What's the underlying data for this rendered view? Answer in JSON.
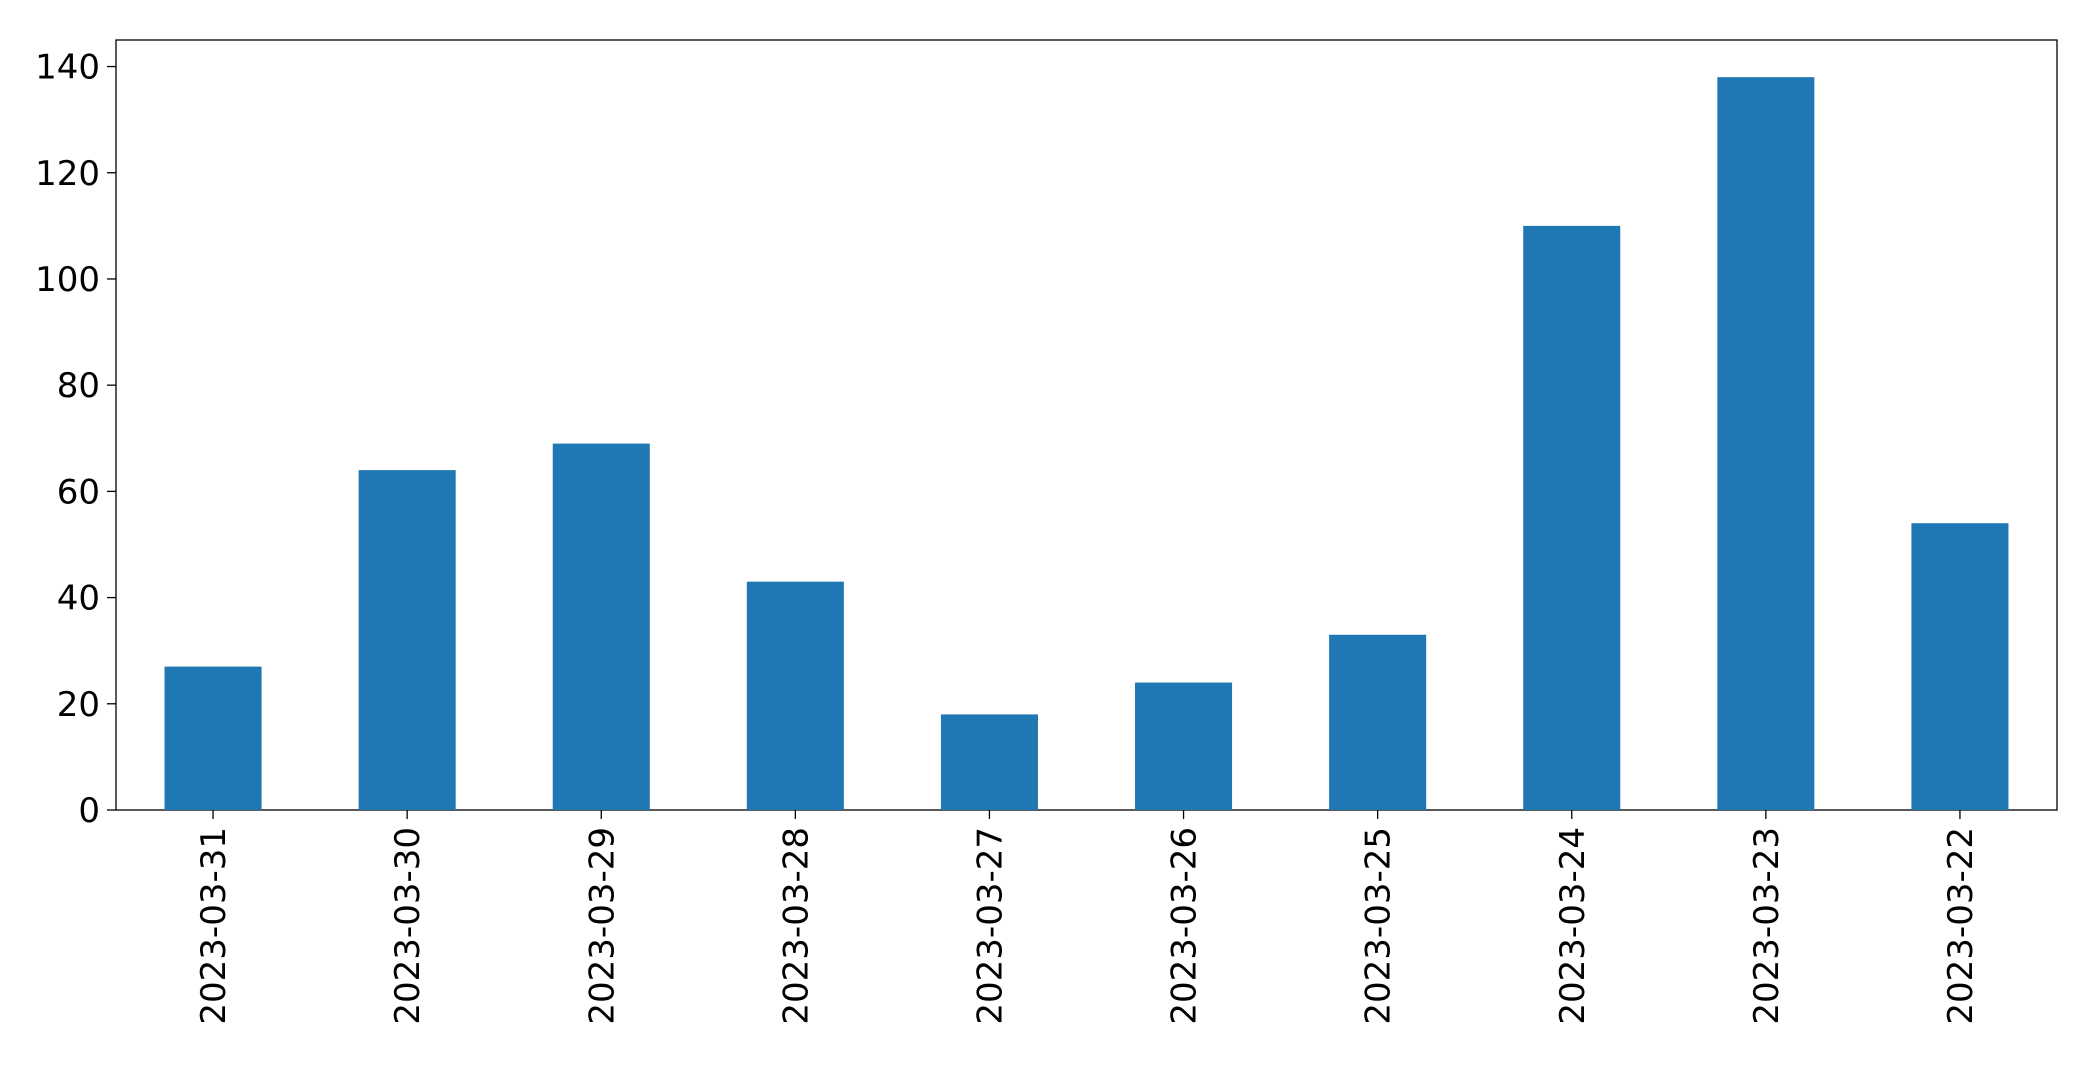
{
  "chart_data": {
    "type": "bar",
    "title": "",
    "xlabel": "",
    "ylabel": "",
    "categories": [
      "2023-03-31",
      "2023-03-30",
      "2023-03-29",
      "2023-03-28",
      "2023-03-27",
      "2023-03-26",
      "2023-03-25",
      "2023-03-24",
      "2023-03-23",
      "2023-03-22"
    ],
    "series": [
      {
        "values": [
          27,
          64,
          69,
          43,
          18,
          24,
          33,
          110,
          138,
          54
        ]
      }
    ],
    "ylim": [
      0,
      145
    ],
    "yticks": [
      0,
      20,
      40,
      60,
      80,
      100,
      120,
      140
    ],
    "grid": false,
    "legend": false,
    "bar_color": "#1f77b4",
    "axis_color": "#000000"
  }
}
